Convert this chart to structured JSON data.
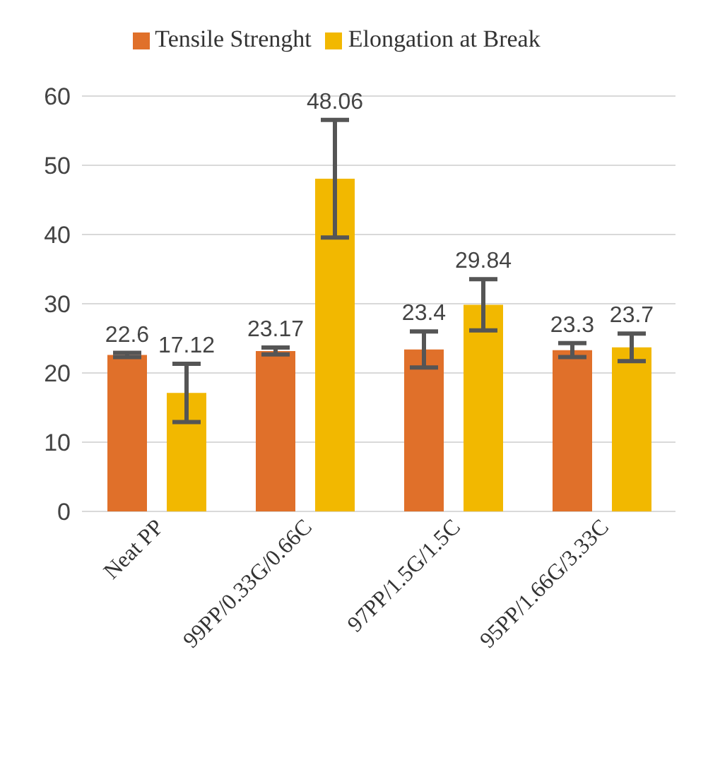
{
  "chart_data": {
    "type": "bar",
    "categories": [
      "Neat PP",
      "99PP/0.33G/0.66C",
      "97PP/1.5G/1.5C",
      "95PP/1.66G/3.33C"
    ],
    "series": [
      {
        "name": "Tensile Strenght",
        "color": "#e0702a",
        "values": [
          22.6,
          23.17,
          23.4,
          23.3
        ],
        "errors": [
          0.3,
          0.5,
          2.6,
          1
        ]
      },
      {
        "name": "Elongation at Break",
        "color": "#f2b800",
        "values": [
          17.12,
          48.06,
          29.84,
          23.7
        ],
        "errors": [
          4.2,
          8.5,
          3.7,
          2
        ]
      }
    ],
    "ylim": [
      0,
      60
    ],
    "yticks": [
      0,
      10,
      20,
      30,
      40,
      50,
      60
    ],
    "grid": "y",
    "legend": "top",
    "data_labels": true
  }
}
